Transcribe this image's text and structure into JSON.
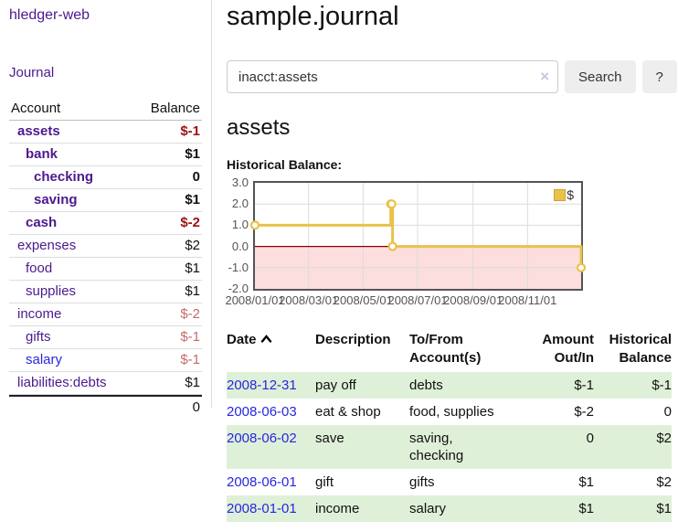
{
  "colors": {
    "link_purple": "#4b1a8e",
    "link_blue": "#2727e0",
    "negative_strong": "#9e1212",
    "negative_pale": "#c46a6a",
    "row_stripe_green": "#dff0d8",
    "chart_line_gold": "#e8c24a",
    "chart_fill_pink": "#fcdede",
    "chart_zero_line": "#8b0000",
    "chart_border": "#545454",
    "grid_gray": "#dcdcdc",
    "button_bg": "#eeeeee"
  },
  "app": {
    "brand": "hledger-web",
    "nav": {
      "journal": "Journal"
    }
  },
  "sidebar": {
    "account_header": "Account",
    "balance_header": "Balance",
    "accounts": [
      {
        "name": "assets",
        "balance": "$-1"
      },
      {
        "name": "bank",
        "balance": "$1"
      },
      {
        "name": "checking",
        "balance": "0"
      },
      {
        "name": "saving",
        "balance": "$1"
      },
      {
        "name": "cash",
        "balance": "$-2"
      },
      {
        "name": "expenses",
        "balance": "$2"
      },
      {
        "name": "food",
        "balance": "$1"
      },
      {
        "name": "supplies",
        "balance": "$1"
      },
      {
        "name": "income",
        "balance": "$-2"
      },
      {
        "name": "gifts",
        "balance": "$-1"
      },
      {
        "name": "salary",
        "balance": "$-1"
      },
      {
        "name": "liabilities:debts",
        "balance": "$1"
      }
    ],
    "total": "0"
  },
  "main": {
    "page_title": "sample.journal",
    "search": {
      "value": "inacct:assets",
      "clear": "×",
      "button": "Search",
      "help": "?"
    },
    "account_title": "assets",
    "chart_heading": "Historical Balance:"
  },
  "chart_data": {
    "type": "line",
    "step": true,
    "title": "Historical Balance",
    "series": [
      {
        "name": "$",
        "x": [
          "2008-01-01",
          "2008-06-01",
          "2008-06-02",
          "2008-06-03",
          "2008-12-31"
        ],
        "values": [
          1,
          2,
          2,
          0,
          -1
        ]
      }
    ],
    "x_range": [
      "2008-01-01",
      "2008-12-31"
    ],
    "ylim": [
      -2,
      3
    ],
    "y_ticks": [
      "3.0",
      "2.0",
      "1.0",
      "0.0",
      "-1.0",
      "-2.0"
    ],
    "x_ticks": [
      "2008/01/01",
      "2008/03/01",
      "2008/05/01",
      "2008/07/01",
      "2008/09/01",
      "2008/11/01"
    ],
    "legend": {
      "label": "$",
      "position": "top-right"
    },
    "grid": true,
    "negative_region_shaded": true
  },
  "register": {
    "headers": {
      "date": "Date",
      "sort_direction": "ascending",
      "description": "Description",
      "account_line1": "To/From",
      "account_line2": "Account(s)",
      "amount_line1": "Amount",
      "amount_line2": "Out/In",
      "balance_line1": "Historical",
      "balance_line2": "Balance"
    },
    "rows": [
      {
        "date": "2008-12-31",
        "description": "pay off",
        "account": "debts",
        "amount": "$-1",
        "balance": "$-1"
      },
      {
        "date": "2008-06-03",
        "description": "eat & shop",
        "account": "food, supplies",
        "amount": "$-2",
        "balance": "0"
      },
      {
        "date": "2008-06-02",
        "description": "save",
        "account": "saving,\nchecking",
        "amount": "0",
        "balance": "$2"
      },
      {
        "date": "2008-06-01",
        "description": "gift",
        "account": "gifts",
        "amount": "$1",
        "balance": "$2"
      },
      {
        "date": "2008-01-01",
        "description": "income",
        "account": "salary",
        "amount": "$1",
        "balance": "$1"
      }
    ]
  }
}
